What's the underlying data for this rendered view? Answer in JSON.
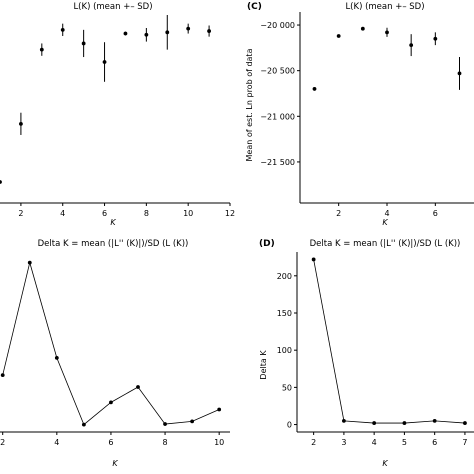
{
  "chart_data": [
    {
      "id": "A",
      "panel_label": "",
      "type": "scatter",
      "title": "L(K) (mean +– SD)",
      "xlabel": "K",
      "ylabel": "",
      "x": [
        1,
        2,
        3,
        4,
        5,
        6,
        7,
        8,
        9,
        10,
        11
      ],
      "y": [
        -21250,
        -20780,
        -20180,
        -20020,
        -20130,
        -20280,
        -20050,
        -20060,
        -20040,
        -20010,
        -20030
      ],
      "sd": [
        0,
        90,
        50,
        50,
        110,
        160,
        15,
        55,
        140,
        40,
        45
      ],
      "xlim": [
        1,
        12
      ],
      "ylim": [
        -21420,
        -19900
      ],
      "xticks": [
        "2",
        "4",
        "6",
        "8",
        "10",
        "12"
      ],
      "xtick_values": [
        2,
        4,
        6,
        8,
        10,
        12
      ],
      "yticks": [],
      "grid": false
    },
    {
      "id": "C",
      "panel_label": "(C)",
      "type": "scatter",
      "title": "L(K) (mean +– SD)",
      "xlabel": "K",
      "ylabel": "Mean of est. Ln prob of data",
      "x": [
        1,
        2,
        3,
        4,
        5,
        6,
        7
      ],
      "y": [
        -20700,
        -20120,
        -20040,
        -20080,
        -20220,
        -20150,
        -20530
      ],
      "sd": [
        0,
        15,
        10,
        50,
        120,
        70,
        180
      ],
      "xlim": [
        0.4,
        7.6
      ],
      "ylim": [
        -21950,
        -19890
      ],
      "xticks": [
        "2",
        "4",
        "6"
      ],
      "xtick_values": [
        2,
        4,
        6
      ],
      "yticks": [
        "−20 000",
        "−20 500",
        "−21 000",
        "−21 500"
      ],
      "ytick_values": [
        -20000,
        -20500,
        -21000,
        -21500
      ],
      "grid": false
    },
    {
      "id": "B",
      "panel_label": "",
      "type": "line",
      "title": "Delta K = mean (|L'' (K)|)/SD (L (K))",
      "xlabel": "K",
      "ylabel": "",
      "x": [
        2,
        3,
        4,
        5,
        6,
        7,
        8,
        9,
        10
      ],
      "y": [
        19.5,
        62,
        26,
        0.8,
        9.2,
        15,
        1,
        2,
        6.5
      ],
      "xlim": [
        1.9,
        10.4
      ],
      "ylim": [
        -2,
        66
      ],
      "xticks": [
        "2",
        "4",
        "6",
        "8",
        "10"
      ],
      "xtick_values": [
        2,
        4,
        6,
        8,
        10
      ],
      "yticks": [],
      "grid": false
    },
    {
      "id": "D",
      "panel_label": "(D)",
      "type": "line",
      "title": "Delta K = mean (|L'' (K)|)/SD (L (K))",
      "xlabel": "K",
      "ylabel": "Delta K",
      "x": [
        2,
        3,
        4,
        5,
        6,
        7
      ],
      "y": [
        222,
        5,
        2,
        2,
        5,
        2
      ],
      "xlim": [
        1.45,
        7.3
      ],
      "ylim": [
        -10,
        232
      ],
      "xticks": [
        "2",
        "3",
        "4",
        "5",
        "6",
        "7"
      ],
      "xtick_values": [
        2,
        3,
        4,
        5,
        6,
        7
      ],
      "yticks": [
        "0",
        "50",
        "100",
        "150",
        "200"
      ],
      "ytick_values": [
        0,
        50,
        100,
        150,
        200
      ],
      "grid": false
    }
  ]
}
